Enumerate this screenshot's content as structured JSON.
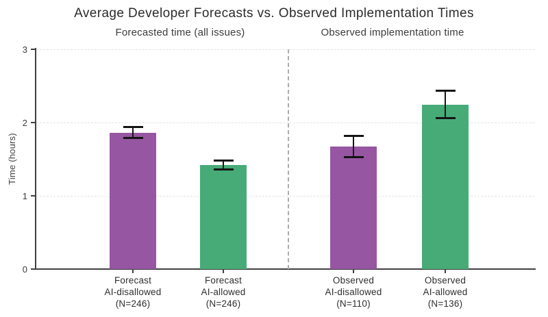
{
  "title": "Average Developer Forecasts vs. Observed Implementation Times",
  "chart_data": {
    "type": "bar",
    "title": "Average Developer Forecasts vs. Observed Implementation Times",
    "ylabel": "Time (hours)",
    "ylim": [
      0,
      3
    ],
    "yticks": [
      0,
      1,
      2,
      3
    ],
    "grid": "horizontal dashed gridlines at 1, 2, 3",
    "legend_position": "none",
    "panel_divider": "vertical gray dashed line between panels",
    "colors": {
      "ai_disallowed": "#9656a2",
      "ai_allowed": "#47ab78",
      "error_bar": "#141414"
    },
    "panels": [
      {
        "label": "Forecasted time (all issues)",
        "bars": [
          {
            "label_lines": [
              "Forecast",
              "AI-disallowed",
              "(N=246)"
            ],
            "value": 1.86,
            "error_low": 1.79,
            "error_high": 1.94,
            "color": "#9656a2"
          },
          {
            "label_lines": [
              "Forecast",
              "AI-allowed",
              "(N=246)"
            ],
            "value": 1.42,
            "error_low": 1.36,
            "error_high": 1.48,
            "color": "#47ab78"
          }
        ]
      },
      {
        "label": "Observed implementation time",
        "bars": [
          {
            "label_lines": [
              "Observed",
              "AI-disallowed",
              "(N=110)"
            ],
            "value": 1.67,
            "error_low": 1.53,
            "error_high": 1.82,
            "color": "#9656a2"
          },
          {
            "label_lines": [
              "Observed",
              "AI-allowed",
              "(N=136)"
            ],
            "value": 2.24,
            "error_low": 2.06,
            "error_high": 2.43,
            "color": "#47ab78"
          }
        ]
      }
    ]
  }
}
